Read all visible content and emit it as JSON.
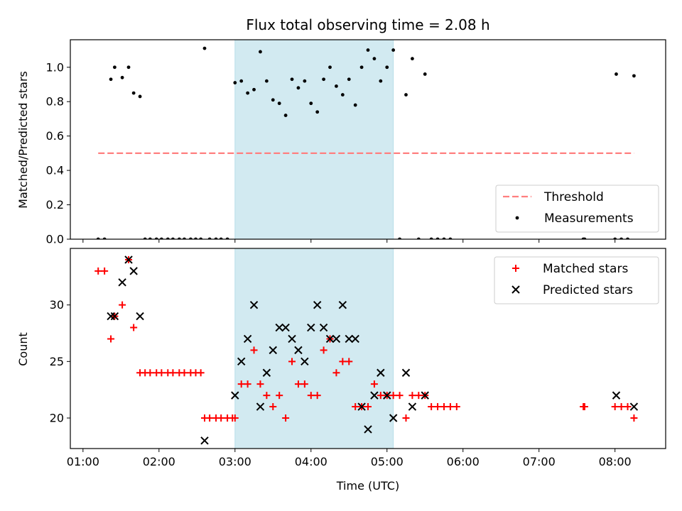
{
  "chart_data": [
    {
      "type": "scatter",
      "title": "Flux total observing time = 2.08 h",
      "xlabel": "",
      "ylabel": "Matched/Predicted stars",
      "xlim": [
        "00:50",
        "08:40"
      ],
      "ylim": [
        0,
        1.16
      ],
      "yticks": [
        0.0,
        0.2,
        0.4,
        0.6,
        0.8,
        1.0
      ],
      "ytick_labels": [
        "0.0",
        "0.2",
        "0.4",
        "0.6",
        "0.8",
        "1.0"
      ],
      "highlight_span": {
        "x": [
          "03:00",
          "05:05"
        ],
        "color": "#add8e6"
      },
      "threshold": {
        "name": "Threshold",
        "y": 0.5,
        "x": [
          "01:12",
          "08:15"
        ],
        "color": "#ff7f7f",
        "style": "dashed"
      },
      "legend": {
        "placement": "lower right",
        "entries": [
          "Threshold",
          "Measurements"
        ]
      },
      "series": [
        {
          "name": "Measurements",
          "marker": "dot",
          "color": "#000000",
          "points": [
            [
              "01:12",
              0.0
            ],
            [
              "01:17",
              0.0
            ],
            [
              "01:22",
              0.93
            ],
            [
              "01:25",
              1.0
            ],
            [
              "01:31",
              0.94
            ],
            [
              "01:36",
              1.0
            ],
            [
              "01:40",
              0.85
            ],
            [
              "01:45",
              0.83
            ],
            [
              "01:49",
              0.0
            ],
            [
              "01:53",
              0.0
            ],
            [
              "01:58",
              0.0
            ],
            [
              "02:02",
              0.0
            ],
            [
              "02:07",
              0.0
            ],
            [
              "02:11",
              0.0
            ],
            [
              "02:16",
              0.0
            ],
            [
              "02:20",
              0.0
            ],
            [
              "02:25",
              0.0
            ],
            [
              "02:29",
              0.0
            ],
            [
              "02:33",
              0.0
            ],
            [
              "02:36",
              1.11
            ],
            [
              "02:40",
              0.0
            ],
            [
              "02:45",
              0.0
            ],
            [
              "02:49",
              0.0
            ],
            [
              "02:54",
              0.0
            ],
            [
              "03:00",
              0.91
            ],
            [
              "03:05",
              0.92
            ],
            [
              "03:10",
              0.85
            ],
            [
              "03:15",
              0.87
            ],
            [
              "03:20",
              1.09
            ],
            [
              "03:25",
              0.92
            ],
            [
              "03:30",
              0.81
            ],
            [
              "03:35",
              0.79
            ],
            [
              "03:40",
              0.72
            ],
            [
              "03:45",
              0.93
            ],
            [
              "03:50",
              0.88
            ],
            [
              "03:55",
              0.92
            ],
            [
              "04:00",
              0.79
            ],
            [
              "04:05",
              0.74
            ],
            [
              "04:10",
              0.93
            ],
            [
              "04:15",
              1.0
            ],
            [
              "04:20",
              0.89
            ],
            [
              "04:25",
              0.84
            ],
            [
              "04:30",
              0.93
            ],
            [
              "04:35",
              0.78
            ],
            [
              "04:40",
              1.0
            ],
            [
              "04:45",
              1.1
            ],
            [
              "04:50",
              1.05
            ],
            [
              "04:55",
              0.92
            ],
            [
              "05:00",
              1.0
            ],
            [
              "05:05",
              1.1
            ],
            [
              "05:10",
              0.0
            ],
            [
              "05:15",
              0.84
            ],
            [
              "05:20",
              1.05
            ],
            [
              "05:25",
              0.0
            ],
            [
              "05:30",
              0.96
            ],
            [
              "05:35",
              0.0
            ],
            [
              "05:40",
              0.0
            ],
            [
              "05:45",
              0.0
            ],
            [
              "05:50",
              0.0
            ],
            [
              "07:35",
              0.0
            ],
            [
              "07:36",
              0.0
            ],
            [
              "08:00",
              0.0
            ],
            [
              "08:01",
              0.96
            ],
            [
              "08:05",
              0.0
            ],
            [
              "08:10",
              0.0
            ],
            [
              "08:15",
              0.95
            ]
          ]
        }
      ]
    },
    {
      "type": "scatter",
      "title": "",
      "xlabel": "Time (UTC)",
      "ylabel": "Count",
      "xlim": [
        "00:50",
        "08:40"
      ],
      "ylim": [
        17.3,
        35.0
      ],
      "xticks": [
        "01:00",
        "02:00",
        "03:00",
        "04:00",
        "05:00",
        "06:00",
        "07:00",
        "08:00"
      ],
      "yticks": [
        20,
        25,
        30
      ],
      "ytick_labels": [
        "20",
        "25",
        "30"
      ],
      "highlight_span": {
        "x": [
          "03:00",
          "05:05"
        ],
        "color": "#add8e6"
      },
      "legend": {
        "placement": "upper right",
        "entries": [
          "Matched stars",
          "Predicted stars"
        ]
      },
      "series": [
        {
          "name": "Matched stars",
          "marker": "plus",
          "color": "#ff0000",
          "points": [
            [
              "01:12",
              33
            ],
            [
              "01:17",
              33
            ],
            [
              "01:22",
              27
            ],
            [
              "01:25",
              29
            ],
            [
              "01:31",
              30
            ],
            [
              "01:36",
              34
            ],
            [
              "01:40",
              28
            ],
            [
              "01:45",
              24
            ],
            [
              "01:49",
              24
            ],
            [
              "01:53",
              24
            ],
            [
              "01:58",
              24
            ],
            [
              "02:02",
              24
            ],
            [
              "02:07",
              24
            ],
            [
              "02:11",
              24
            ],
            [
              "02:16",
              24
            ],
            [
              "02:20",
              24
            ],
            [
              "02:25",
              24
            ],
            [
              "02:29",
              24
            ],
            [
              "02:33",
              24
            ],
            [
              "02:36",
              20
            ],
            [
              "02:40",
              20
            ],
            [
              "02:45",
              20
            ],
            [
              "02:49",
              20
            ],
            [
              "02:54",
              20
            ],
            [
              "02:58",
              20
            ],
            [
              "03:00",
              20
            ],
            [
              "03:05",
              23
            ],
            [
              "03:10",
              23
            ],
            [
              "03:15",
              26
            ],
            [
              "03:20",
              23
            ],
            [
              "03:25",
              22
            ],
            [
              "03:30",
              21
            ],
            [
              "03:35",
              22
            ],
            [
              "03:40",
              20
            ],
            [
              "03:45",
              25
            ],
            [
              "03:50",
              23
            ],
            [
              "03:55",
              23
            ],
            [
              "04:00",
              22
            ],
            [
              "04:05",
              22
            ],
            [
              "04:10",
              26
            ],
            [
              "04:15",
              27
            ],
            [
              "04:20",
              24
            ],
            [
              "04:25",
              25
            ],
            [
              "04:30",
              25
            ],
            [
              "04:35",
              21
            ],
            [
              "04:40",
              21
            ],
            [
              "04:45",
              21
            ],
            [
              "04:50",
              23
            ],
            [
              "04:55",
              22
            ],
            [
              "05:00",
              22
            ],
            [
              "05:05",
              22
            ],
            [
              "05:10",
              22
            ],
            [
              "05:15",
              20
            ],
            [
              "05:20",
              22
            ],
            [
              "05:25",
              22
            ],
            [
              "05:30",
              22
            ],
            [
              "05:35",
              21
            ],
            [
              "05:40",
              21
            ],
            [
              "05:45",
              21
            ],
            [
              "05:50",
              21
            ],
            [
              "05:55",
              21
            ],
            [
              "07:35",
              21
            ],
            [
              "07:36",
              21
            ],
            [
              "08:00",
              21
            ],
            [
              "08:05",
              21
            ],
            [
              "08:10",
              21
            ],
            [
              "08:15",
              20
            ]
          ]
        },
        {
          "name": "Predicted stars",
          "marker": "x",
          "color": "#000000",
          "points": [
            [
              "01:22",
              29
            ],
            [
              "01:25",
              29
            ],
            [
              "01:31",
              32
            ],
            [
              "01:36",
              34
            ],
            [
              "01:40",
              33
            ],
            [
              "01:45",
              29
            ],
            [
              "02:36",
              18
            ],
            [
              "03:00",
              22
            ],
            [
              "03:05",
              25
            ],
            [
              "03:10",
              27
            ],
            [
              "03:15",
              30
            ],
            [
              "03:20",
              21
            ],
            [
              "03:25",
              24
            ],
            [
              "03:30",
              26
            ],
            [
              "03:35",
              28
            ],
            [
              "03:40",
              28
            ],
            [
              "03:45",
              27
            ],
            [
              "03:50",
              26
            ],
            [
              "03:55",
              25
            ],
            [
              "04:00",
              28
            ],
            [
              "04:05",
              30
            ],
            [
              "04:10",
              28
            ],
            [
              "04:15",
              27
            ],
            [
              "04:20",
              27
            ],
            [
              "04:25",
              30
            ],
            [
              "04:30",
              27
            ],
            [
              "04:35",
              27
            ],
            [
              "04:40",
              21
            ],
            [
              "04:45",
              19
            ],
            [
              "04:50",
              22
            ],
            [
              "04:55",
              24
            ],
            [
              "05:00",
              22
            ],
            [
              "05:05",
              20
            ],
            [
              "05:15",
              24
            ],
            [
              "05:20",
              21
            ],
            [
              "05:30",
              22
            ],
            [
              "08:01",
              22
            ],
            [
              "08:15",
              21
            ]
          ]
        }
      ]
    }
  ]
}
